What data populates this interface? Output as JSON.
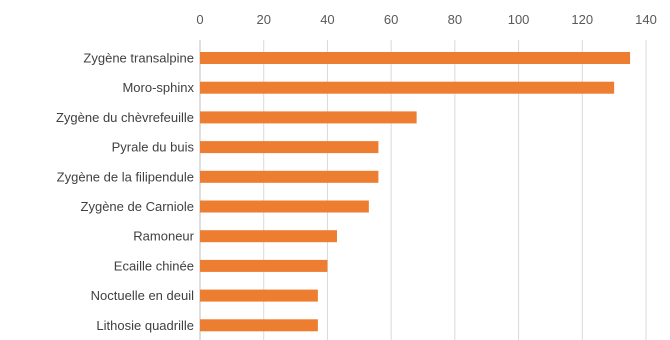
{
  "chart_data": {
    "type": "bar",
    "orientation": "horizontal",
    "categories": [
      "Zygène transalpine",
      "Moro-sphinx",
      "Zygène du chèvrefeuille",
      "Pyrale du buis",
      "Zygène de la filipendule",
      "Zygène de Carniole",
      "Ramoneur",
      "Ecaille chinée",
      "Noctuelle en deuil",
      "Lithosie quadrille"
    ],
    "values": [
      135,
      130,
      68,
      56,
      56,
      53,
      43,
      40,
      37,
      37
    ],
    "xticks": [
      "0",
      "20",
      "40",
      "60",
      "80",
      "100",
      "120",
      "140"
    ],
    "xlim": [
      0,
      140
    ],
    "x_axis_position": "top",
    "grid": true,
    "bar_color": "#ED7D31",
    "title": "",
    "xlabel": "",
    "ylabel": ""
  }
}
